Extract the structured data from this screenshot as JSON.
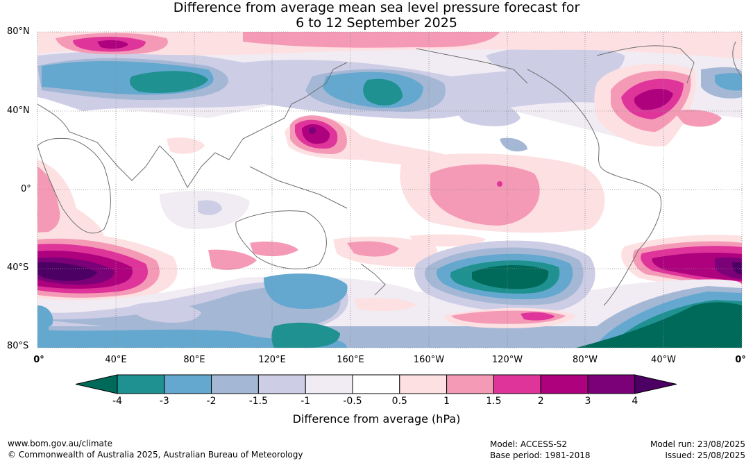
{
  "title": {
    "line1": "Difference from average mean sea level pressure forecast for",
    "line2": "6 to 12 September 2025"
  },
  "axes": {
    "lat_labels": [
      "80°N",
      "40°N",
      "0°",
      "40°S",
      "80°S"
    ],
    "lon_labels": [
      "0°",
      "40°E",
      "80°E",
      "120°E",
      "160°E",
      "160°W",
      "120°W",
      "80°W",
      "40°W",
      "0°"
    ]
  },
  "legend": {
    "title": "Difference from average (hPa)",
    "tick_labels": [
      "-4",
      "-3",
      "-2",
      "-1.5",
      "-1",
      "-0.5",
      "0.5",
      "1",
      "1.5",
      "2",
      "3",
      "4"
    ],
    "colors": [
      "#006a5a",
      "#1f9190",
      "#64a8cf",
      "#a4b8d6",
      "#cdcde5",
      "#f1ecf3",
      "#ffffff",
      "#fde0e2",
      "#f59ab6",
      "#df359b",
      "#ad017e",
      "#7a0177",
      "#4d0064"
    ]
  },
  "footer": {
    "website": "www.bom.gov.au/climate",
    "copyright": "© Commonwealth of Australia 2025, Australian Bureau of Meteorology",
    "model": "Model: ACCESS-S2",
    "base_period": "Base period: 1981-2018",
    "model_run": "Model run: 23/08/2025",
    "issued": "Issued: 25/08/2025"
  }
}
